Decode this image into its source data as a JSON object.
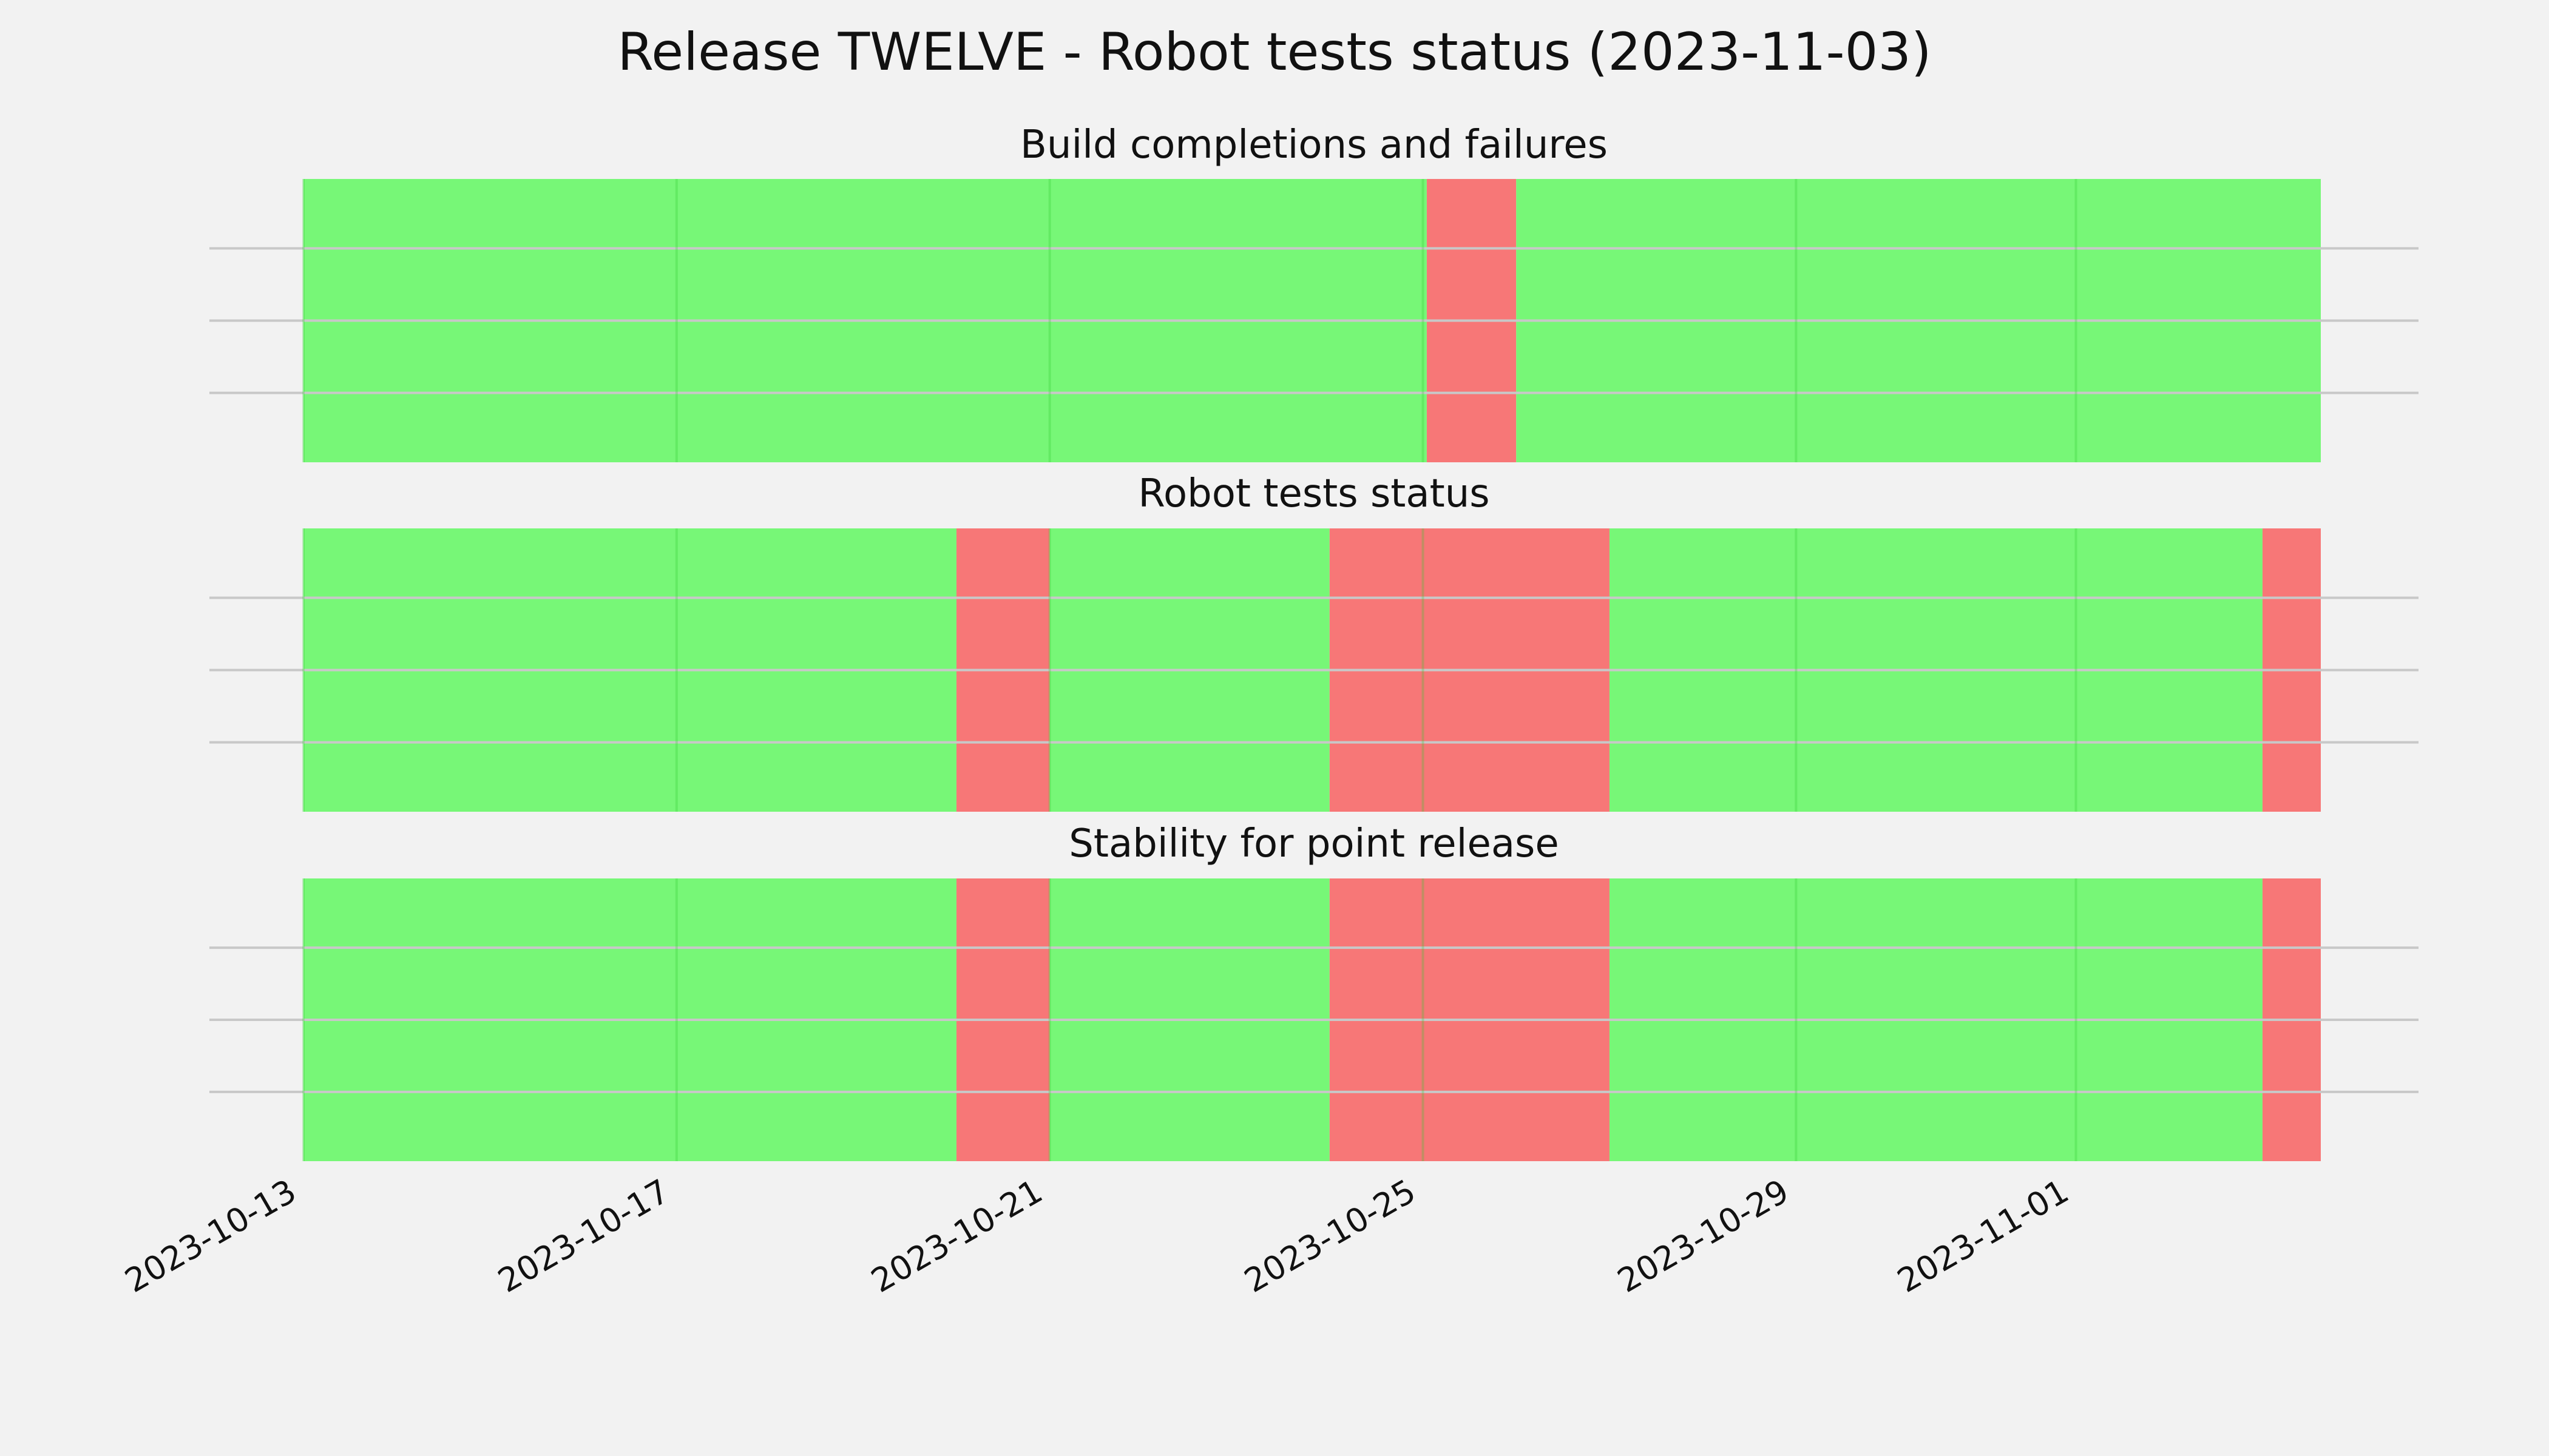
{
  "chart_data": {
    "type": "timeline",
    "title": "Release TWELVE - Robot tests status (2023-11-03)",
    "x_range": [
      "2023-10-13",
      "2023-11-03T15:00"
    ],
    "x_ticks": [
      "2023-10-13",
      "2023-10-17",
      "2023-10-21",
      "2023-10-25",
      "2023-10-29",
      "2023-11-01"
    ],
    "grid": true,
    "colors": {
      "pass": "#77f777",
      "fail": "#f77777",
      "background": "#f2f2f2"
    },
    "panels": [
      {
        "title": "Build completions and failures",
        "segments": [
          {
            "start": "2023-10-13",
            "end": "2023-10-25T01:00",
            "status": "pass"
          },
          {
            "start": "2023-10-25T01:00",
            "end": "2023-10-26T00:00",
            "status": "fail"
          },
          {
            "start": "2023-10-26T00:00",
            "end": "2023-11-03T15:00",
            "status": "pass"
          }
        ]
      },
      {
        "title": "Robot tests status",
        "segments": [
          {
            "start": "2023-10-13",
            "end": "2023-10-20",
            "status": "pass"
          },
          {
            "start": "2023-10-20",
            "end": "2023-10-21",
            "status": "fail"
          },
          {
            "start": "2023-10-21",
            "end": "2023-10-24",
            "status": "pass"
          },
          {
            "start": "2023-10-24",
            "end": "2023-10-27",
            "status": "fail"
          },
          {
            "start": "2023-10-27",
            "end": "2023-11-03",
            "status": "pass"
          },
          {
            "start": "2023-11-03",
            "end": "2023-11-03T15:00",
            "status": "fail"
          }
        ]
      },
      {
        "title": "Stability for point release",
        "segments": [
          {
            "start": "2023-10-13",
            "end": "2023-10-20",
            "status": "pass"
          },
          {
            "start": "2023-10-20",
            "end": "2023-10-21",
            "status": "fail"
          },
          {
            "start": "2023-10-21",
            "end": "2023-10-24",
            "status": "pass"
          },
          {
            "start": "2023-10-24",
            "end": "2023-10-27",
            "status": "fail"
          },
          {
            "start": "2023-10-27",
            "end": "2023-11-03",
            "status": "pass"
          },
          {
            "start": "2023-11-03",
            "end": "2023-11-03T15:00",
            "status": "fail"
          }
        ]
      }
    ]
  }
}
